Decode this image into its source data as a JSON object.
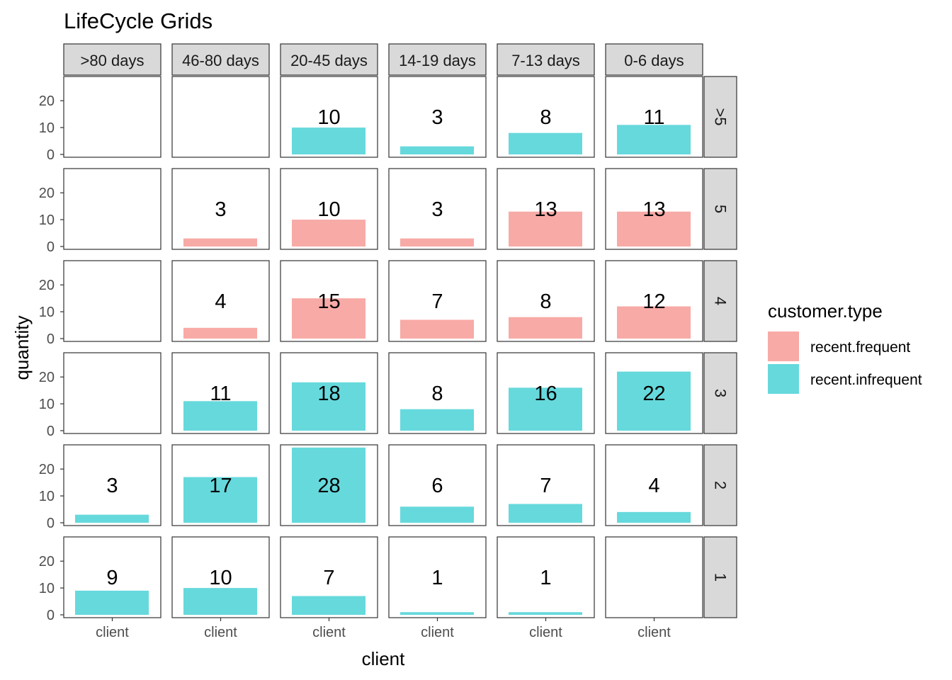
{
  "chart_data": {
    "type": "bar",
    "title": "LifeCycle Grids",
    "xlabel": "client",
    "ylabel": "quantity",
    "ylim": [
      0,
      29
    ],
    "yticks": [
      0,
      10,
      20
    ],
    "x_category": "client",
    "column_facets": [
      ">80 days",
      "46-80 days",
      "20-45 days",
      "14-19 days",
      "7-13 days",
      "0-6 days"
    ],
    "row_facets": [
      ">5",
      "5",
      "4",
      "3",
      "2",
      "1"
    ],
    "legend": {
      "title": "customer.type",
      "placement": "right",
      "entries": [
        {
          "name": "recent.frequent",
          "color": "#F8AAA6"
        },
        {
          "name": "recent.infrequent",
          "color": "#66D9DC"
        }
      ]
    },
    "cells": [
      {
        "row": ">5",
        "col": "20-45 days",
        "value": 10,
        "type": "recent.infrequent"
      },
      {
        "row": ">5",
        "col": "14-19 days",
        "value": 3,
        "type": "recent.infrequent"
      },
      {
        "row": ">5",
        "col": "7-13 days",
        "value": 8,
        "type": "recent.infrequent"
      },
      {
        "row": ">5",
        "col": "0-6 days",
        "value": 11,
        "type": "recent.infrequent"
      },
      {
        "row": "5",
        "col": "46-80 days",
        "value": 3,
        "type": "recent.frequent"
      },
      {
        "row": "5",
        "col": "20-45 days",
        "value": 10,
        "type": "recent.frequent"
      },
      {
        "row": "5",
        "col": "14-19 days",
        "value": 3,
        "type": "recent.frequent"
      },
      {
        "row": "5",
        "col": "7-13 days",
        "value": 13,
        "type": "recent.frequent"
      },
      {
        "row": "5",
        "col": "0-6 days",
        "value": 13,
        "type": "recent.frequent"
      },
      {
        "row": "4",
        "col": "46-80 days",
        "value": 4,
        "type": "recent.frequent"
      },
      {
        "row": "4",
        "col": "20-45 days",
        "value": 15,
        "type": "recent.frequent"
      },
      {
        "row": "4",
        "col": "14-19 days",
        "value": 7,
        "type": "recent.frequent"
      },
      {
        "row": "4",
        "col": "7-13 days",
        "value": 8,
        "type": "recent.frequent"
      },
      {
        "row": "4",
        "col": "0-6 days",
        "value": 12,
        "type": "recent.frequent"
      },
      {
        "row": "3",
        "col": "46-80 days",
        "value": 11,
        "type": "recent.infrequent"
      },
      {
        "row": "3",
        "col": "20-45 days",
        "value": 18,
        "type": "recent.infrequent"
      },
      {
        "row": "3",
        "col": "14-19 days",
        "value": 8,
        "type": "recent.infrequent"
      },
      {
        "row": "3",
        "col": "7-13 days",
        "value": 16,
        "type": "recent.infrequent"
      },
      {
        "row": "3",
        "col": "0-6 days",
        "value": 22,
        "type": "recent.infrequent"
      },
      {
        "row": "2",
        "col": ">80 days",
        "value": 3,
        "type": "recent.infrequent"
      },
      {
        "row": "2",
        "col": "46-80 days",
        "value": 17,
        "type": "recent.infrequent"
      },
      {
        "row": "2",
        "col": "20-45 days",
        "value": 28,
        "type": "recent.infrequent"
      },
      {
        "row": "2",
        "col": "14-19 days",
        "value": 6,
        "type": "recent.infrequent"
      },
      {
        "row": "2",
        "col": "7-13 days",
        "value": 7,
        "type": "recent.infrequent"
      },
      {
        "row": "2",
        "col": "0-6 days",
        "value": 4,
        "type": "recent.infrequent"
      },
      {
        "row": "1",
        "col": ">80 days",
        "value": 9,
        "type": "recent.infrequent"
      },
      {
        "row": "1",
        "col": "46-80 days",
        "value": 10,
        "type": "recent.infrequent"
      },
      {
        "row": "1",
        "col": "20-45 days",
        "value": 7,
        "type": "recent.infrequent"
      },
      {
        "row": "1",
        "col": "14-19 days",
        "value": 1,
        "type": "recent.infrequent"
      },
      {
        "row": "1",
        "col": "7-13 days",
        "value": 1,
        "type": "recent.infrequent"
      }
    ]
  }
}
